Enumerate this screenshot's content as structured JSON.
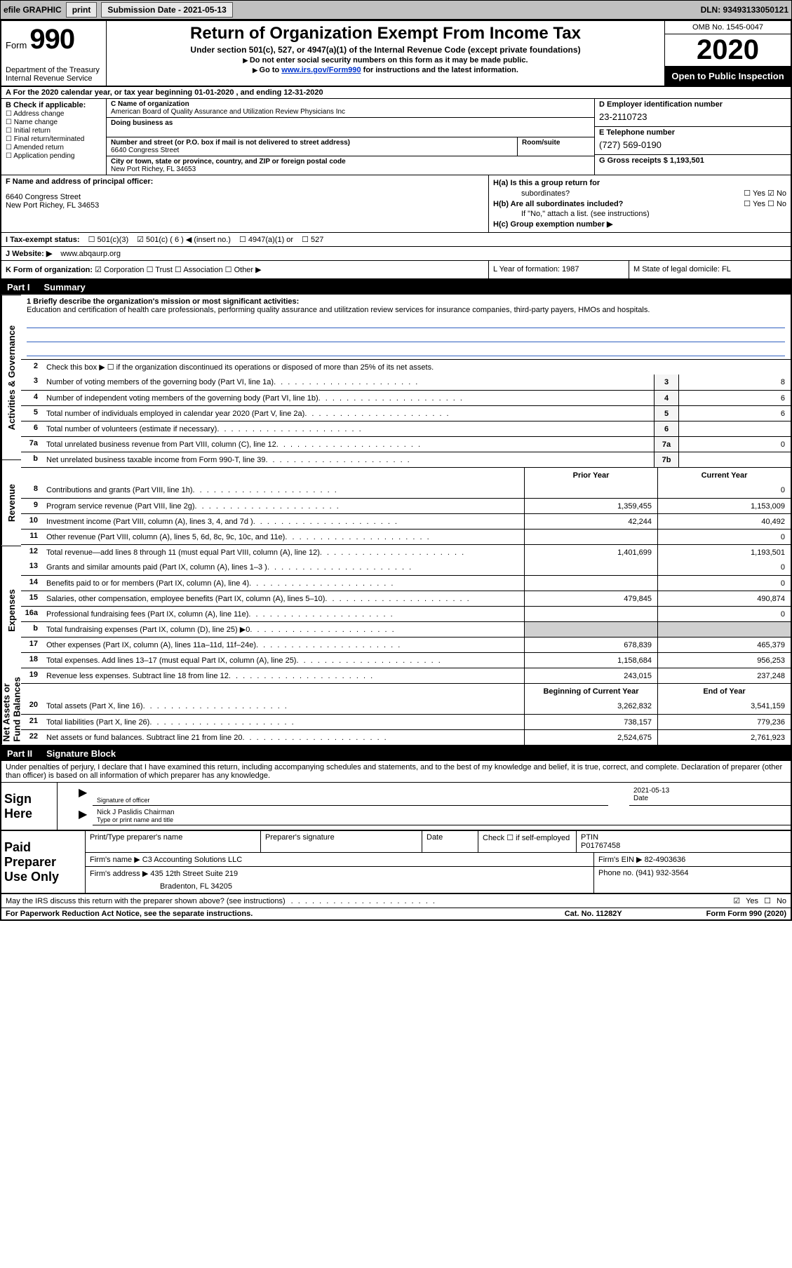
{
  "topbar": {
    "efile_label": "efile GRAPHIC",
    "print_btn": "print",
    "submission_label": "Submission Date - 2021-05-13",
    "dln": "DLN: 93493133050121"
  },
  "header": {
    "form_word": "Form",
    "form_number": "990",
    "dept": "Department of the Treasury",
    "irs": "Internal Revenue Service",
    "title": "Return of Organization Exempt From Income Tax",
    "subtitle": "Under section 501(c), 527, or 4947(a)(1) of the Internal Revenue Code (except private foundations)",
    "note1": "Do not enter social security numbers on this form as it may be made public.",
    "note2_pre": "Go to ",
    "note2_link": "www.irs.gov/Form990",
    "note2_post": " for instructions and the latest information.",
    "omb": "OMB No. 1545-0047",
    "year": "2020",
    "inspect": "Open to Public Inspection"
  },
  "row_a": "A For the 2020 calendar year, or tax year beginning 01-01-2020   , and ending 12-31-2020",
  "col_b": {
    "header": "B Check if applicable:",
    "opts": [
      "Address change",
      "Name change",
      "Initial return",
      "Final return/terminated",
      "Amended return",
      "Application pending"
    ]
  },
  "col_c": {
    "name_label": "C Name of organization",
    "name": "American Board of Quality Assurance and Utilization Review Physicians Inc",
    "dba_label": "Doing business as",
    "addr_label": "Number and street (or P.O. box if mail is not delivered to street address)",
    "room_label": "Room/suite",
    "addr": "6640 Congress Street",
    "city_label": "City or town, state or province, country, and ZIP or foreign postal code",
    "city": "New Port Richey, FL  34653"
  },
  "col_d": {
    "ein_label": "D Employer identification number",
    "ein": "23-2110723",
    "tel_label": "E Telephone number",
    "tel": "(727) 569-0190",
    "gross_label": "G Gross receipts $ 1,193,501"
  },
  "col_f": {
    "label": "F  Name and address of principal officer:",
    "addr1": "6640 Congress Street",
    "addr2": "New Port Richey, FL  34653"
  },
  "col_h": {
    "ha": "H(a)  Is this a group return for",
    "ha2": "subordinates?",
    "hb": "H(b)  Are all subordinates included?",
    "hb_note": "If \"No,\" attach a list. (see instructions)",
    "hc": "H(c)  Group exemption number ▶",
    "yes": "Yes",
    "no": "No"
  },
  "row_i": {
    "label": "I    Tax-exempt status:",
    "o1": "501(c)(3)",
    "o2": "501(c) ( 6 ) ◀ (insert no.)",
    "o3": "4947(a)(1) or",
    "o4": "527"
  },
  "row_j": {
    "label": "J   Website: ▶",
    "val": "www.abqaurp.org"
  },
  "row_k": {
    "label": "K Form of organization:",
    "o1": "Corporation",
    "o2": "Trust",
    "o3": "Association",
    "o4": "Other ▶",
    "l_label": "L Year of formation: 1987",
    "m_label": "M State of legal domicile: FL"
  },
  "part1": {
    "num": "Part I",
    "title": "Summary",
    "side_labels": [
      "Activities & Governance",
      "Revenue",
      "Expenses",
      "Net Assets or Fund Balances"
    ],
    "line1_label": "1  Briefly describe the organization's mission or most significant activities:",
    "mission": "Education and certification of health care professionals, performing quality assurance and utilitzation review services for insurance companies, third-party payers, HMOs and hospitals.",
    "line2": "Check this box ▶ ☐  if the organization discontinued its operations or disposed of more than 25% of its net assets.",
    "prior_year": "Prior Year",
    "current_year": "Current Year",
    "beg_year": "Beginning of Current Year",
    "end_year": "End of Year",
    "rows": [
      {
        "n": "3",
        "t": "Number of voting members of the governing body (Part VI, line 1a)",
        "box": "3",
        "v": "8"
      },
      {
        "n": "4",
        "t": "Number of independent voting members of the governing body (Part VI, line 1b)",
        "box": "4",
        "v": "6"
      },
      {
        "n": "5",
        "t": "Total number of individuals employed in calendar year 2020 (Part V, line 2a)",
        "box": "5",
        "v": "6"
      },
      {
        "n": "6",
        "t": "Total number of volunteers (estimate if necessary)",
        "box": "6",
        "v": ""
      },
      {
        "n": "7a",
        "t": "Total unrelated business revenue from Part VIII, column (C), line 12",
        "box": "7a",
        "v": "0"
      },
      {
        "n": "b",
        "t": "Net unrelated business taxable income from Form 990-T, line 39",
        "box": "7b",
        "v": ""
      }
    ],
    "revenue": [
      {
        "n": "8",
        "t": "Contributions and grants (Part VIII, line 1h)",
        "p": "",
        "c": "0"
      },
      {
        "n": "9",
        "t": "Program service revenue (Part VIII, line 2g)",
        "p": "1,359,455",
        "c": "1,153,009"
      },
      {
        "n": "10",
        "t": "Investment income (Part VIII, column (A), lines 3, 4, and 7d )",
        "p": "42,244",
        "c": "40,492"
      },
      {
        "n": "11",
        "t": "Other revenue (Part VIII, column (A), lines 5, 6d, 8c, 9c, 10c, and 11e)",
        "p": "",
        "c": "0"
      },
      {
        "n": "12",
        "t": "Total revenue—add lines 8 through 11 (must equal Part VIII, column (A), line 12)",
        "p": "1,401,699",
        "c": "1,193,501"
      }
    ],
    "expenses": [
      {
        "n": "13",
        "t": "Grants and similar amounts paid (Part IX, column (A), lines 1–3 )",
        "p": "",
        "c": "0"
      },
      {
        "n": "14",
        "t": "Benefits paid to or for members (Part IX, column (A), line 4)",
        "p": "",
        "c": "0"
      },
      {
        "n": "15",
        "t": "Salaries, other compensation, employee benefits (Part IX, column (A), lines 5–10)",
        "p": "479,845",
        "c": "490,874"
      },
      {
        "n": "16a",
        "t": "Professional fundraising fees (Part IX, column (A), line 11e)",
        "p": "",
        "c": "0"
      },
      {
        "n": "b",
        "t": "Total fundraising expenses (Part IX, column (D), line 25) ▶0",
        "p": "shaded",
        "c": "shaded"
      },
      {
        "n": "17",
        "t": "Other expenses (Part IX, column (A), lines 11a–11d, 11f–24e)",
        "p": "678,839",
        "c": "465,379"
      },
      {
        "n": "18",
        "t": "Total expenses. Add lines 13–17 (must equal Part IX, column (A), line 25)",
        "p": "1,158,684",
        "c": "956,253"
      },
      {
        "n": "19",
        "t": "Revenue less expenses. Subtract line 18 from line 12",
        "p": "243,015",
        "c": "237,248"
      }
    ],
    "netassets": [
      {
        "n": "20",
        "t": "Total assets (Part X, line 16)",
        "p": "3,262,832",
        "c": "3,541,159"
      },
      {
        "n": "21",
        "t": "Total liabilities (Part X, line 26)",
        "p": "738,157",
        "c": "779,236"
      },
      {
        "n": "22",
        "t": "Net assets or fund balances. Subtract line 21 from line 20",
        "p": "2,524,675",
        "c": "2,761,923"
      }
    ]
  },
  "part2": {
    "num": "Part II",
    "title": "Signature Block",
    "intro": "Under penalties of perjury, I declare that I have examined this return, including accompanying schedules and statements, and to the best of my knowledge and belief, it is true, correct, and complete. Declaration of preparer (other than officer) is based on all information of which preparer has any knowledge.",
    "sign_here": "Sign Here",
    "sig_officer_lab": "Signature of officer",
    "sig_date_lab": "Date",
    "sig_date": "2021-05-13",
    "officer_name": "Nick J Paslidis  Chairman",
    "officer_lab": "Type or print name and title",
    "paid_prep": "Paid Preparer Use Only",
    "prep_name_lab": "Print/Type preparer's name",
    "prep_sig_lab": "Preparer's signature",
    "prep_date_lab": "Date",
    "prep_check": "Check ☐ if self-employed",
    "ptin_lab": "PTIN",
    "ptin": "P01767458",
    "firm_name_lab": "Firm's name    ▶",
    "firm_name": "C3 Accounting Solutions LLC",
    "firm_ein_lab": "Firm's EIN ▶",
    "firm_ein": "82-4903636",
    "firm_addr_lab": "Firm's address ▶",
    "firm_addr1": "435 12th Street Suite 219",
    "firm_addr2": "Bradenton, FL  34205",
    "phone_lab": "Phone no.",
    "phone": "(941) 932-3564"
  },
  "footer": {
    "discuss": "May the IRS discuss this return with the preparer shown above? (see instructions)",
    "yes": "Yes",
    "no": "No",
    "pra": "For Paperwork Reduction Act Notice, see the separate instructions.",
    "cat": "Cat. No. 11282Y",
    "form": "Form 990 (2020)"
  }
}
